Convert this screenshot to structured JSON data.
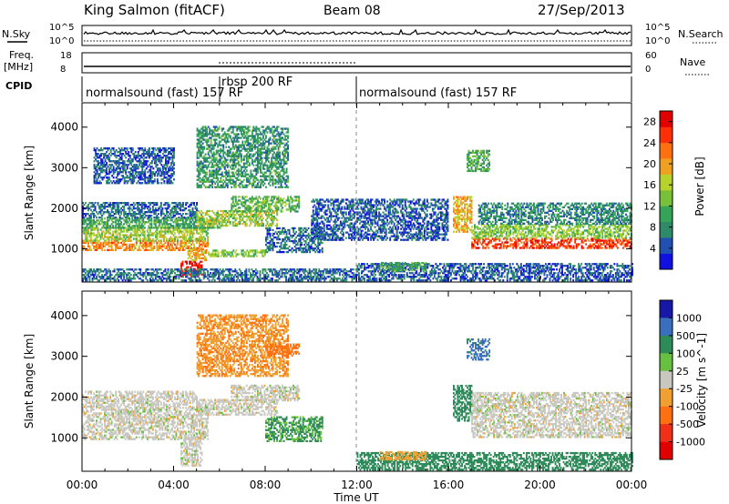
{
  "header": {
    "station": "King Salmon (fitACF)",
    "beam": "Beam 08",
    "date": "27/Sep/2013"
  },
  "strip_labels": {
    "nsky": "N.Sky",
    "freq_line1": "Freq.",
    "freq_line2": "[MHz]",
    "cpid": "CPID",
    "nsearch": "N.Search",
    "nave": "Nave",
    "nsky_ticks": [
      "10^5",
      "10^0"
    ],
    "nsearch_ticks": [
      "10^5",
      "10^0"
    ],
    "freq_ticks": [
      "18",
      "8"
    ],
    "nave_ticks": [
      "60",
      "0"
    ]
  },
  "cpid_modes": [
    {
      "label": "normalsound (fast) 157 RF",
      "start_ut": 0.0,
      "end_ut": 12.0
    },
    {
      "label": "rbsp 200 RF",
      "start_ut": 6.0,
      "end_ut": 12.0
    },
    {
      "label": "normalsound (fast) 157 RF",
      "start_ut": 12.0,
      "end_ut": 24.0
    }
  ],
  "chart_data": [
    {
      "type": "heatmap",
      "name": "power",
      "xlabel": "Time UT",
      "ylabel": "Slant Range [km]",
      "xlim": [
        0,
        24
      ],
      "ylim": [
        180,
        4600
      ],
      "xticks": [
        "00:00",
        "04:00",
        "08:00",
        "12:00",
        "16:00",
        "20:00",
        "00:00"
      ],
      "yticks": [
        1000,
        2000,
        3000,
        4000
      ],
      "colorbar": {
        "label": "Power [dB]",
        "ticks": [
          4,
          8,
          12,
          16,
          20,
          24,
          28
        ],
        "colors": [
          "#1010e0",
          "#2050b0",
          "#2f8a6a",
          "#35a35a",
          "#78c03a",
          "#b8d22c",
          "#f0a020",
          "#ff7010",
          "#ff3008",
          "#e00000"
        ],
        "range": [
          0,
          30
        ]
      },
      "regions": [
        {
          "t0": 0.0,
          "t1": 5.5,
          "r0": 950,
          "r1": 1180,
          "v": 21
        },
        {
          "t0": 0.0,
          "t1": 5.5,
          "r0": 1180,
          "r1": 1500,
          "v": 15
        },
        {
          "t0": 0.0,
          "t1": 6.0,
          "r0": 1500,
          "r1": 1750,
          "v": 10
        },
        {
          "t0": 0.0,
          "t1": 5.0,
          "r0": 1750,
          "r1": 2150,
          "v": 6
        },
        {
          "t0": 4.3,
          "t1": 5.2,
          "r0": 300,
          "r1": 700,
          "v": 28
        },
        {
          "t0": 4.6,
          "t1": 5.4,
          "r0": 700,
          "r1": 1000,
          "v": 19
        },
        {
          "t0": 5.0,
          "t1": 8.5,
          "r0": 1550,
          "r1": 1950,
          "v": 15
        },
        {
          "t0": 6.5,
          "t1": 9.5,
          "r0": 1900,
          "r1": 2300,
          "v": 12
        },
        {
          "t0": 5.5,
          "t1": 8.0,
          "r0": 800,
          "r1": 950,
          "v": 14
        },
        {
          "t0": 8.0,
          "t1": 10.5,
          "r0": 900,
          "r1": 1500,
          "v": 6
        },
        {
          "t0": 5.0,
          "t1": 9.0,
          "r0": 2500,
          "r1": 4000,
          "v": 9
        },
        {
          "t0": 0.5,
          "t1": 4.0,
          "r0": 2600,
          "r1": 3500,
          "v": 5
        },
        {
          "t0": 16.8,
          "t1": 17.8,
          "r0": 2900,
          "r1": 3400,
          "v": 11
        },
        {
          "t0": 16.2,
          "t1": 17.0,
          "r0": 1400,
          "r1": 2300,
          "v": 19
        },
        {
          "t0": 17.0,
          "t1": 24.0,
          "r0": 1000,
          "r1": 1250,
          "v": 25
        },
        {
          "t0": 17.0,
          "t1": 24.0,
          "r0": 1250,
          "r1": 1600,
          "v": 14
        },
        {
          "t0": 17.3,
          "t1": 24.0,
          "r0": 1600,
          "r1": 2100,
          "v": 8
        },
        {
          "t0": 12.0,
          "t1": 24.0,
          "r0": 200,
          "r1": 650,
          "v": 5
        },
        {
          "t0": 0.0,
          "t1": 12.0,
          "r0": 200,
          "r1": 500,
          "v": 6
        },
        {
          "t0": 13.0,
          "t1": 15.0,
          "r0": 450,
          "r1": 650,
          "v": 10
        },
        {
          "t0": 10.0,
          "t1": 16.0,
          "r0": 1200,
          "r1": 2200,
          "v": 5
        }
      ]
    },
    {
      "type": "heatmap",
      "name": "velocity",
      "xlabel": "Time UT",
      "ylabel": "Slant Range [km]",
      "xlim": [
        0,
        24
      ],
      "ylim": [
        180,
        4600
      ],
      "xticks": [
        "00:00",
        "04:00",
        "08:00",
        "12:00",
        "16:00",
        "20:00",
        "00:00"
      ],
      "yticks": [
        1000,
        2000,
        3000,
        4000
      ],
      "colorbar": {
        "label": "Velocity [m s^-1]",
        "ticks": [
          "1000",
          "500",
          "100",
          "25",
          "-25",
          "-100",
          "-500",
          "-1000"
        ],
        "bins": [
          1500,
          1000,
          500,
          100,
          25,
          -25,
          -100,
          -500,
          -1000
        ],
        "colors": [
          "#1818a8",
          "#3a6fc0",
          "#2f8a5a",
          "#68c040",
          "#c8c8c0",
          "#f0a030",
          "#ff7010",
          "#f03018",
          "#e00000"
        ]
      },
      "regions": [
        {
          "t0": 0.0,
          "t1": 5.5,
          "r0": 950,
          "r1": 1750,
          "v": 0
        },
        {
          "t0": 0.0,
          "t1": 5.0,
          "r0": 1750,
          "r1": 2150,
          "v": 0
        },
        {
          "t0": 4.3,
          "t1": 5.2,
          "r0": 300,
          "r1": 1000,
          "v": 0
        },
        {
          "t0": 5.0,
          "t1": 8.5,
          "r0": 1550,
          "r1": 1950,
          "v": 0
        },
        {
          "t0": 6.5,
          "t1": 9.5,
          "r0": 1900,
          "r1": 2300,
          "v": 0
        },
        {
          "t0": 5.0,
          "t1": 9.0,
          "r0": 2500,
          "r1": 4000,
          "v": -90
        },
        {
          "t0": 8.0,
          "t1": 9.5,
          "r0": 3000,
          "r1": 3300,
          "v": -420
        },
        {
          "t0": 8.0,
          "t1": 10.5,
          "r0": 900,
          "r1": 1500,
          "v": 110
        },
        {
          "t0": 16.8,
          "t1": 17.8,
          "r0": 2900,
          "r1": 3400,
          "v": 520
        },
        {
          "t0": 16.2,
          "t1": 17.0,
          "r0": 1400,
          "r1": 2300,
          "v": 180
        },
        {
          "t0": 17.0,
          "t1": 24.0,
          "r0": 1000,
          "r1": 2100,
          "v": 0
        },
        {
          "t0": 12.0,
          "t1": 24.0,
          "r0": 200,
          "r1": 650,
          "v": 140
        },
        {
          "t0": 13.0,
          "t1": 15.0,
          "r0": 450,
          "r1": 650,
          "v": -60
        }
      ]
    }
  ]
}
